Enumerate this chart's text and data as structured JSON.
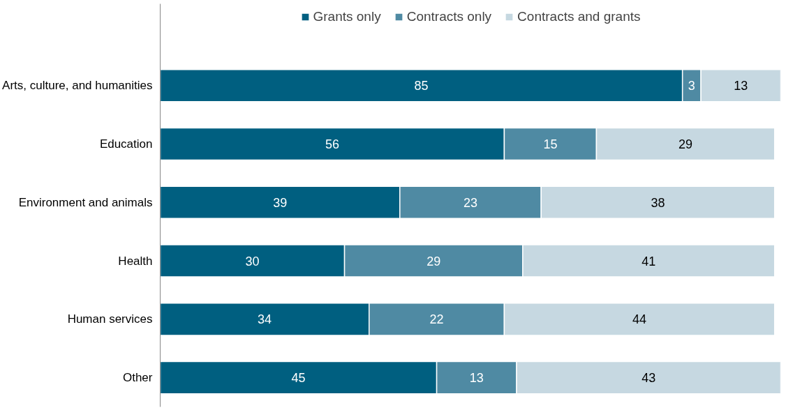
{
  "chart_data": {
    "type": "bar",
    "orientation": "horizontal",
    "stacked": true,
    "data_labels": true,
    "legend": "top",
    "grid": false,
    "tick_labels": "y",
    "categories": [
      "Arts, culture, and humanities",
      "Education",
      "Environment and animals",
      "Health",
      "Human services",
      "Other"
    ],
    "series": [
      {
        "name": "Grants only",
        "color": "#005f80",
        "values": [
          85,
          56,
          39,
          30,
          34,
          45
        ]
      },
      {
        "name": "Contracts only",
        "color": "#4f8aa3",
        "values": [
          3,
          15,
          23,
          29,
          22,
          13
        ]
      },
      {
        "name": "Contracts and grants",
        "color": "#c6d8e1",
        "values": [
          13,
          29,
          38,
          41,
          44,
          43
        ]
      }
    ]
  }
}
